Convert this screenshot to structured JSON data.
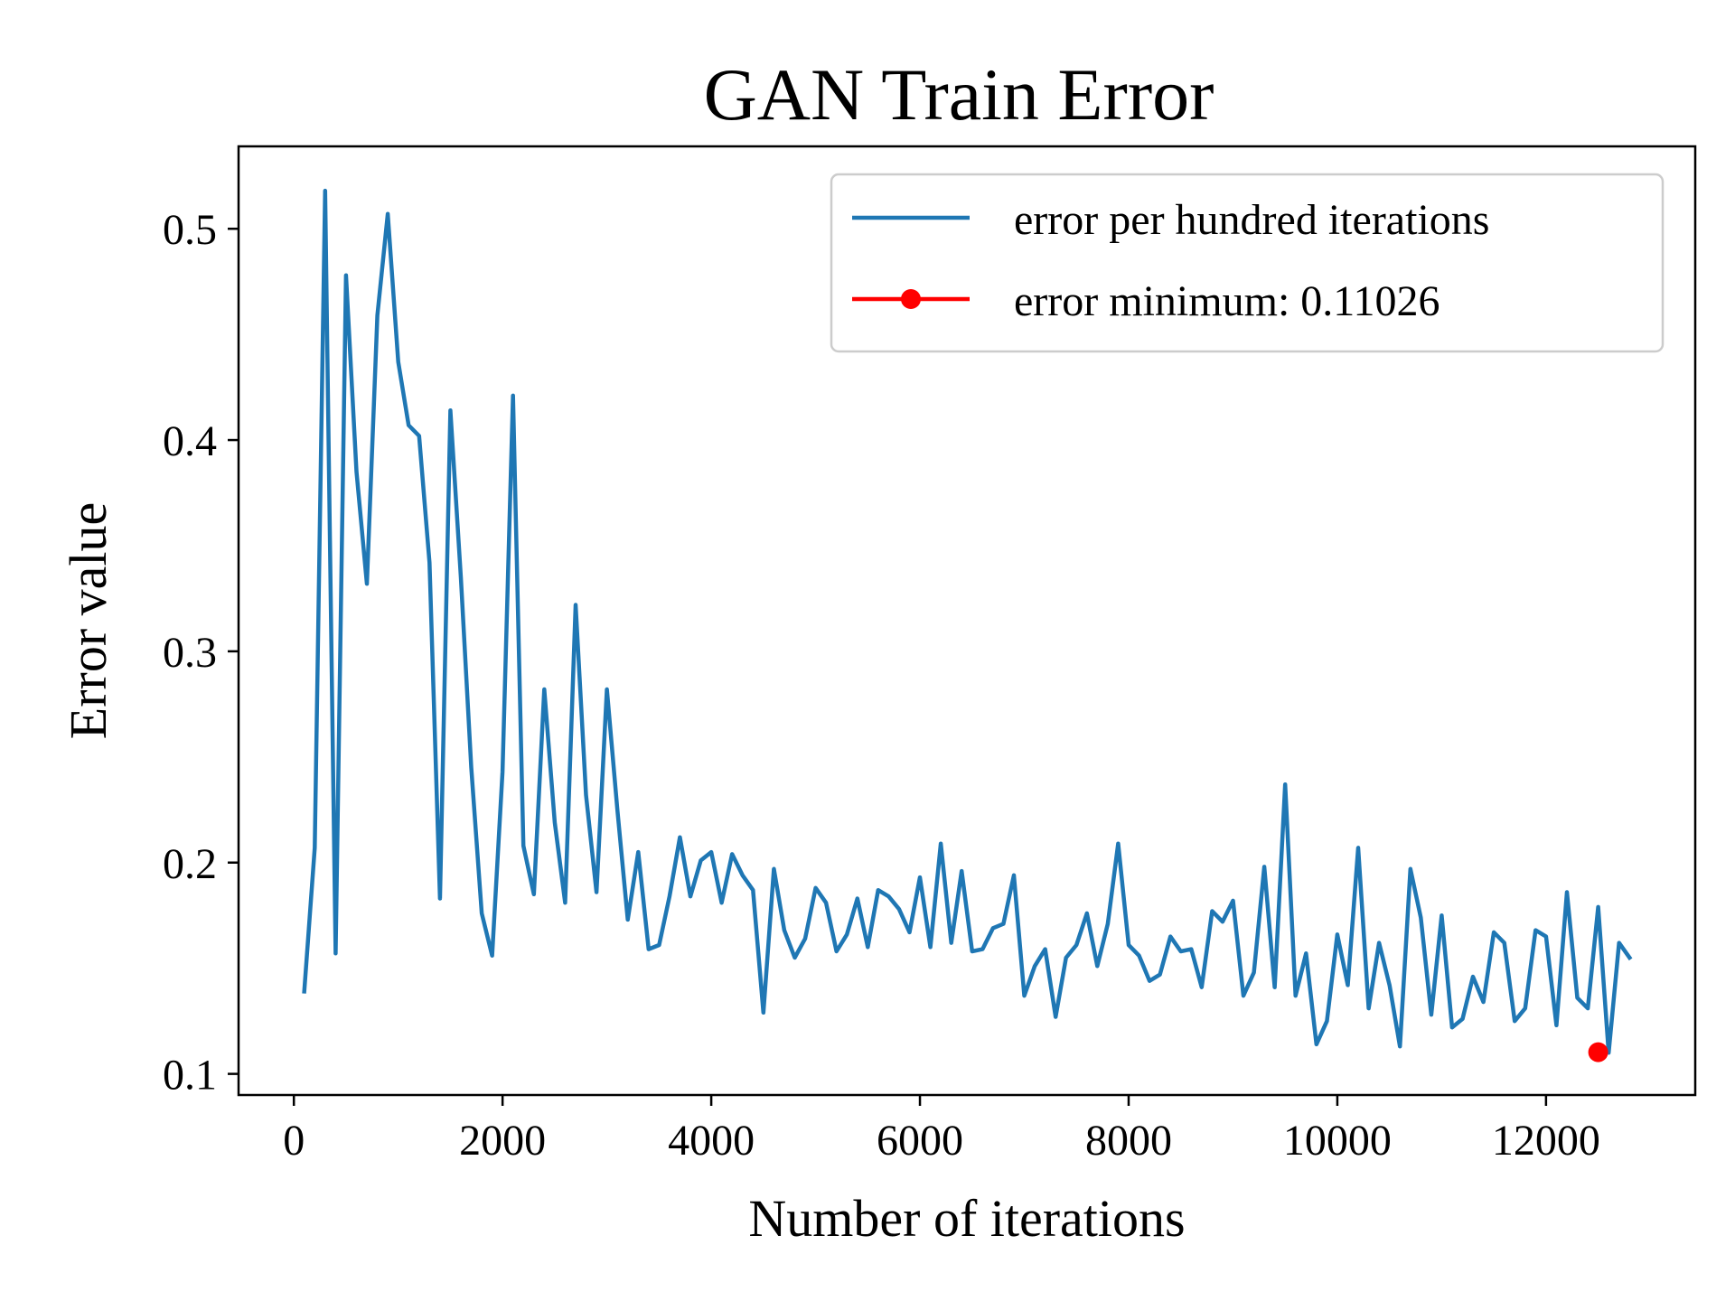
{
  "chart_data": {
    "type": "line",
    "title": "GAN  Train Error",
    "xlabel": "Number of iterations",
    "ylabel": "Error value",
    "xlim": [
      -530,
      13430
    ],
    "ylim": [
      0.09,
      0.539
    ],
    "xticks": [
      0,
      2000,
      4000,
      6000,
      8000,
      10000,
      12000
    ],
    "yticks": [
      0.1,
      0.2,
      0.3,
      0.4,
      0.5
    ],
    "xtick_labels": [
      "0",
      "2000",
      "4000",
      "6000",
      "8000",
      "10000",
      "12000"
    ],
    "ytick_labels": [
      "0.1",
      "0.2",
      "0.3",
      "0.4",
      "0.5"
    ],
    "grid": false,
    "legend_position": "top-right",
    "series": [
      {
        "name": "error per hundred iterations",
        "color": "#1f77b4",
        "x": [
          100,
          200,
          300,
          400,
          500,
          600,
          700,
          800,
          900,
          1000,
          1100,
          1200,
          1300,
          1400,
          1500,
          1600,
          1700,
          1800,
          1900,
          2000,
          2100,
          2200,
          2300,
          2400,
          2500,
          2600,
          2700,
          2800,
          2900,
          3000,
          3100,
          3200,
          3300,
          3400,
          3500,
          3600,
          3700,
          3800,
          3900,
          4000,
          4100,
          4200,
          4300,
          4400,
          4500,
          4600,
          4700,
          4800,
          4900,
          5000,
          5100,
          5200,
          5300,
          5400,
          5500,
          5600,
          5700,
          5800,
          5900,
          6000,
          6100,
          6200,
          6300,
          6400,
          6500,
          6600,
          6700,
          6800,
          6900,
          7000,
          7100,
          7200,
          7300,
          7400,
          7500,
          7600,
          7700,
          7800,
          7900,
          8000,
          8100,
          8200,
          8300,
          8400,
          8500,
          8600,
          8700,
          8800,
          8900,
          9000,
          9100,
          9200,
          9300,
          9400,
          9500,
          9600,
          9700,
          9800,
          9900,
          10000,
          10100,
          10200,
          10300,
          10400,
          10500,
          10600,
          10700,
          10800,
          10900,
          11000,
          11100,
          11200,
          11300,
          11400,
          11500,
          11600,
          11700,
          11800,
          11900,
          12000,
          12100,
          12200,
          12300,
          12400,
          12500,
          12600,
          12700,
          12800
        ],
        "y": [
          0.139,
          0.207,
          0.518,
          0.157,
          0.478,
          0.385,
          0.332,
          0.459,
          0.507,
          0.437,
          0.407,
          0.402,
          0.342,
          0.183,
          0.414,
          0.335,
          0.245,
          0.176,
          0.156,
          0.243,
          0.421,
          0.208,
          0.185,
          0.282,
          0.219,
          0.181,
          0.322,
          0.232,
          0.186,
          0.282,
          0.225,
          0.173,
          0.205,
          0.159,
          0.161,
          0.184,
          0.212,
          0.184,
          0.201,
          0.205,
          0.181,
          0.204,
          0.194,
          0.187,
          0.129,
          0.197,
          0.168,
          0.155,
          0.164,
          0.188,
          0.181,
          0.158,
          0.166,
          0.183,
          0.16,
          0.187,
          0.184,
          0.178,
          0.167,
          0.193,
          0.16,
          0.209,
          0.162,
          0.196,
          0.158,
          0.159,
          0.169,
          0.171,
          0.194,
          0.137,
          0.151,
          0.159,
          0.127,
          0.155,
          0.161,
          0.176,
          0.151,
          0.171,
          0.209,
          0.161,
          0.156,
          0.144,
          0.147,
          0.165,
          0.158,
          0.159,
          0.141,
          0.177,
          0.172,
          0.182,
          0.137,
          0.148,
          0.198,
          0.141,
          0.237,
          0.137,
          0.157,
          0.114,
          0.125,
          0.166,
          0.142,
          0.207,
          0.131,
          0.162,
          0.142,
          0.113,
          0.197,
          0.174,
          0.128,
          0.175,
          0.122,
          0.126,
          0.146,
          0.134,
          0.167,
          0.162,
          0.125,
          0.131,
          0.168,
          0.165,
          0.123,
          0.186,
          0.136,
          0.131,
          0.179,
          0.11,
          0.162,
          0.155
        ]
      },
      {
        "name": "error minimum: 0.11026",
        "color": "#ff0000",
        "marker": "circle",
        "x": [
          12500
        ],
        "y": [
          0.11026
        ]
      }
    ]
  }
}
